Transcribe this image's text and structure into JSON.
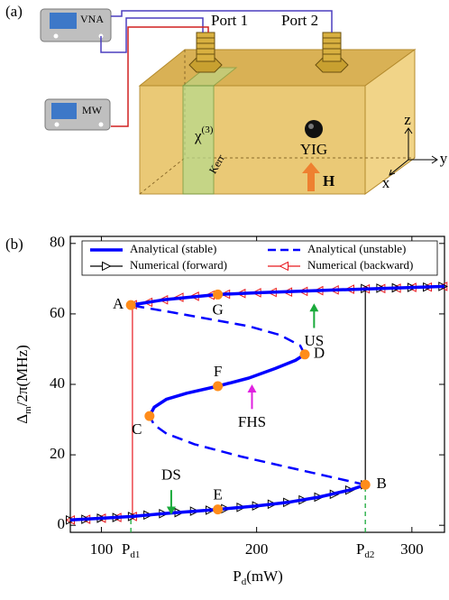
{
  "diagram": {
    "panel": "(a)",
    "vna": "VNA",
    "mw": "MW",
    "port1": "Port 1",
    "port2": "Port 2",
    "chi": {
      "text": "χ",
      "sup": "(3)"
    },
    "kerr": "Kerr",
    "yig": "YIG",
    "field": "H",
    "axis_z": "z",
    "axis_y": "y",
    "axis_x": "x"
  },
  "chart_data": {
    "type": "line",
    "panel": "(b)",
    "xlabel": {
      "text": "P",
      "sub": "d",
      "rest": "(mW)"
    },
    "ylabel": {
      "text": "Δ",
      "sub": "m",
      "rest": "/2π(MHz)"
    },
    "xlim": [
      80,
      321
    ],
    "ylim": [
      -2,
      82
    ],
    "xticks": [
      100,
      {
        "value": 119,
        "label": "P",
        "sub": "d1"
      },
      200,
      {
        "value": 270,
        "label": "P",
        "sub": "d2"
      },
      300
    ],
    "yticks": [
      0,
      20,
      40,
      60,
      80
    ],
    "grid": false,
    "series": [
      {
        "name": "Analytical (stable)",
        "color": "#0000ff",
        "style": "solid",
        "x": [
          80,
          100,
          120,
          140,
          160,
          175,
          200,
          220,
          240,
          260,
          270,
          null,
          131,
          134,
          142,
          155,
          175,
          195,
          212,
          225,
          231,
          null,
          119,
          140,
          175,
          200,
          250,
          300,
          321
        ],
        "values": [
          1.5,
          2,
          2.5,
          3.3,
          4,
          4.5,
          5.5,
          6.5,
          8,
          10,
          11.5,
          null,
          31,
          33.5,
          35.8,
          37.5,
          39.5,
          41.8,
          44.5,
          46.8,
          48.5,
          null,
          62.5,
          64,
          65.5,
          66,
          66.8,
          67.5,
          67.8
        ]
      },
      {
        "name": "Analytical (unstable)",
        "color": "#0000ff",
        "style": "dashed",
        "x": [
          270,
          250,
          220,
          190,
          160,
          142,
          134,
          131,
          null,
          231,
          228,
          215,
          195,
          170,
          145,
          125,
          119
        ],
        "values": [
          11.5,
          13.5,
          16.5,
          19.5,
          23,
          26,
          28.5,
          31,
          null,
          48.5,
          51,
          54,
          56.5,
          58.5,
          60.5,
          62,
          62.5
        ]
      },
      {
        "name": "Numerical (forward)",
        "color": "#000000",
        "style": "marker-right",
        "x": [
          80,
          90,
          100,
          110,
          120,
          130,
          140,
          150,
          160,
          170,
          180,
          190,
          200,
          210,
          220,
          230,
          240,
          250,
          260,
          270,
          270,
          280,
          290,
          300,
          310,
          320
        ],
        "values": [
          1.5,
          1.7,
          2,
          2.2,
          2.5,
          2.9,
          3.3,
          3.6,
          4,
          4.3,
          4.7,
          5.1,
          5.5,
          6,
          6.5,
          7.2,
          8,
          8.8,
          10,
          11.5,
          67.2,
          67.3,
          67.4,
          67.5,
          67.6,
          67.8
        ]
      },
      {
        "name": "Numerical (backward)",
        "color": "#e8191f",
        "style": "marker-left",
        "x": [
          320,
          310,
          300,
          290,
          280,
          270,
          260,
          250,
          240,
          230,
          220,
          210,
          200,
          190,
          180,
          170,
          160,
          150,
          140,
          130,
          120,
          120,
          110,
          100,
          90,
          80
        ],
        "values": [
          67.8,
          67.6,
          67.5,
          67.3,
          67.2,
          67.1,
          67,
          66.8,
          66.6,
          66.4,
          66.2,
          66.1,
          66,
          65.8,
          65.6,
          65.3,
          65,
          64.7,
          64,
          63.3,
          62.6,
          2.5,
          2.2,
          2,
          1.7,
          1.5
        ]
      }
    ],
    "points": {
      "color": "#ff8c1a",
      "labels": [
        "A",
        "G",
        "D",
        "F",
        "C",
        "B",
        "E"
      ],
      "x": [
        119,
        175,
        231,
        175,
        131,
        270,
        175
      ],
      "values": [
        62.5,
        65.5,
        48.5,
        39.5,
        31,
        11.5,
        4.5
      ]
    },
    "annotations": [
      {
        "text": "US",
        "color": "#1aaa3a",
        "x": 237,
        "y": 52,
        "from": 56,
        "to": 63
      },
      {
        "text": "FHS",
        "color": "#e020e0",
        "x": 197,
        "y": 29,
        "from": 33,
        "to": 40
      },
      {
        "text": "DS",
        "color": "#1aaa3a",
        "x": 145,
        "y": 14,
        "from": 10,
        "to": 3
      }
    ]
  }
}
